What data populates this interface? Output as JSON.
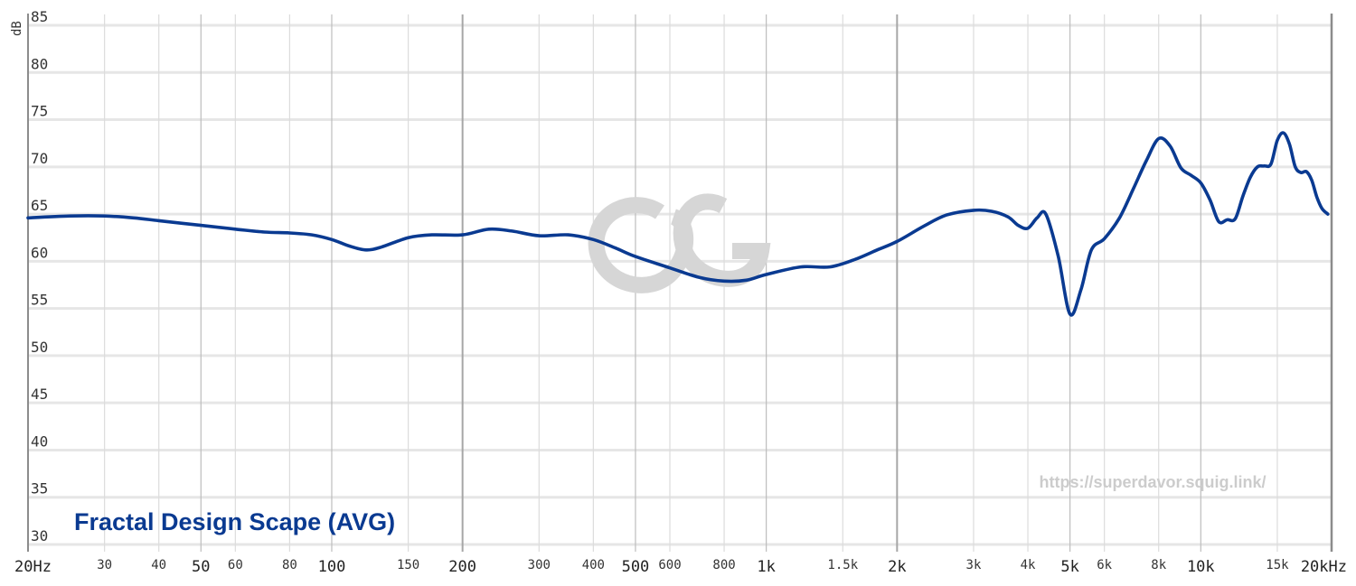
{
  "chart_data": {
    "type": "line",
    "title": "Fractal Design Scape (AVG)",
    "watermark_url": "https://superdavor.squig.link/",
    "ylabel": "dB",
    "xscale": "log",
    "xlim": [
      20,
      20000
    ],
    "ylim": [
      30,
      85
    ],
    "grid": true,
    "yticks": [
      {
        "v": 30,
        "label": "30"
      },
      {
        "v": 35,
        "label": "35"
      },
      {
        "v": 40,
        "label": "40"
      },
      {
        "v": 45,
        "label": "45"
      },
      {
        "v": 50,
        "label": "50"
      },
      {
        "v": 55,
        "label": "55"
      },
      {
        "v": 60,
        "label": "60"
      },
      {
        "v": 65,
        "label": "65"
      },
      {
        "v": 70,
        "label": "70"
      },
      {
        "v": 75,
        "label": "75"
      },
      {
        "v": 80,
        "label": "80"
      },
      {
        "v": 85,
        "label": "85"
      }
    ],
    "xticks": [
      {
        "v": 20,
        "label": "20Hz",
        "major": true
      },
      {
        "v": 30,
        "label": "30",
        "major": false
      },
      {
        "v": 40,
        "label": "40",
        "major": false
      },
      {
        "v": 50,
        "label": "50",
        "major": true
      },
      {
        "v": 60,
        "label": "60",
        "major": false
      },
      {
        "v": 80,
        "label": "80",
        "major": false
      },
      {
        "v": 100,
        "label": "100",
        "major": true
      },
      {
        "v": 150,
        "label": "150",
        "major": false
      },
      {
        "v": 200,
        "label": "200",
        "major": true
      },
      {
        "v": 300,
        "label": "300",
        "major": false
      },
      {
        "v": 400,
        "label": "400",
        "major": false
      },
      {
        "v": 500,
        "label": "500",
        "major": true
      },
      {
        "v": 600,
        "label": "600",
        "major": false
      },
      {
        "v": 800,
        "label": "800",
        "major": false
      },
      {
        "v": 1000,
        "label": "1k",
        "major": true
      },
      {
        "v": 1500,
        "label": "1.5k",
        "major": false
      },
      {
        "v": 2000,
        "label": "2k",
        "major": true
      },
      {
        "v": 3000,
        "label": "3k",
        "major": false
      },
      {
        "v": 4000,
        "label": "4k",
        "major": false
      },
      {
        "v": 5000,
        "label": "5k",
        "major": true
      },
      {
        "v": 6000,
        "label": "6k",
        "major": false
      },
      {
        "v": 8000,
        "label": "8k",
        "major": false
      },
      {
        "v": 10000,
        "label": "10k",
        "major": true
      },
      {
        "v": 15000,
        "label": "15k",
        "major": false
      },
      {
        "v": 20000,
        "label": "20kHz",
        "major": true
      }
    ],
    "series": [
      {
        "name": "Fractal Design Scape (AVG)",
        "color": "#0a3a91",
        "x": [
          20,
          25,
          30,
          35,
          40,
          50,
          60,
          70,
          80,
          90,
          100,
          110,
          120,
          130,
          150,
          170,
          200,
          230,
          260,
          300,
          350,
          400,
          450,
          500,
          600,
          700,
          800,
          900,
          1000,
          1200,
          1400,
          1600,
          1800,
          2000,
          2300,
          2600,
          3000,
          3300,
          3600,
          3800,
          4000,
          4200,
          4400,
          4700,
          5000,
          5300,
          5600,
          6000,
          6500,
          7000,
          7500,
          8000,
          8500,
          9000,
          9500,
          10000,
          10500,
          11000,
          11500,
          12000,
          12500,
          13000,
          13500,
          14000,
          14500,
          15000,
          15500,
          16000,
          16500,
          17000,
          17500,
          18000,
          18500,
          19000,
          19600
        ],
        "y": [
          64.6,
          64.8,
          64.8,
          64.6,
          64.3,
          63.8,
          63.4,
          63.1,
          63.0,
          62.8,
          62.3,
          61.6,
          61.2,
          61.5,
          62.5,
          62.8,
          62.8,
          63.4,
          63.2,
          62.7,
          62.8,
          62.3,
          61.4,
          60.5,
          59.3,
          58.3,
          57.9,
          58.0,
          58.6,
          59.4,
          59.4,
          60.2,
          61.2,
          62.1,
          63.7,
          64.9,
          65.4,
          65.3,
          64.7,
          63.8,
          63.5,
          64.6,
          65.0,
          60.5,
          54.4,
          57.0,
          61.2,
          62.4,
          64.6,
          67.7,
          70.7,
          73.0,
          72.2,
          69.9,
          69.1,
          68.3,
          66.5,
          64.2,
          64.4,
          64.5,
          66.9,
          68.9,
          70.0,
          70.1,
          70.3,
          72.8,
          73.6,
          72.4,
          70.0,
          69.4,
          69.5,
          68.6,
          66.8,
          65.6,
          65.0
        ]
      }
    ]
  }
}
